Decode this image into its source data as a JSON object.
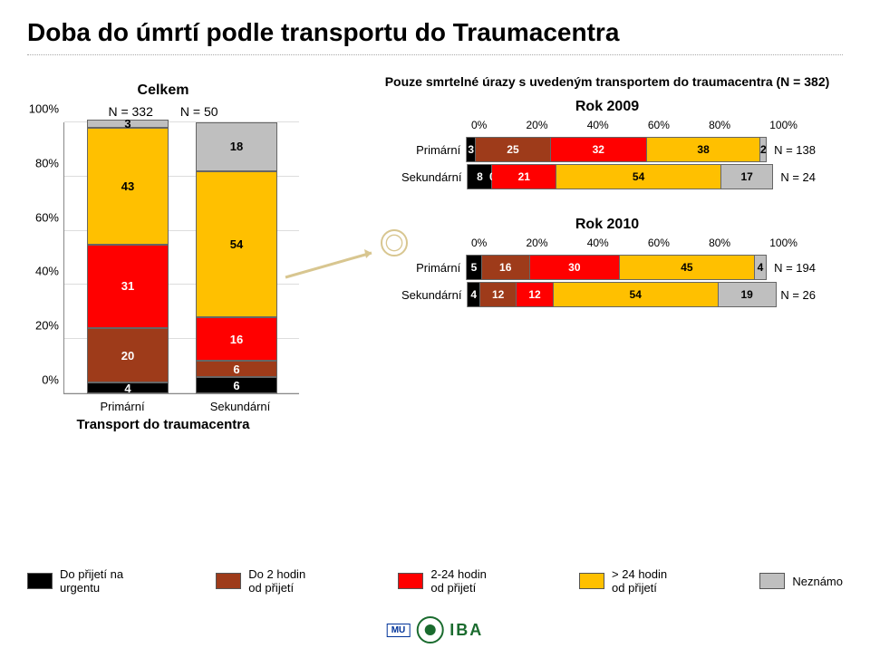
{
  "title": "Doba do úmrtí podle transportu do Traumacentra",
  "left": {
    "title": "Celkem",
    "n1_label": "N = 332",
    "n2_label": "N = 50",
    "ylabels": [
      "0%",
      "20%",
      "40%",
      "60%",
      "80%",
      "100%"
    ],
    "xlabels": [
      "Primární",
      "Sekundární"
    ],
    "caption": "Transport do traumacentra",
    "col1": [
      {
        "v": 4,
        "l": "4",
        "cls": "black"
      },
      {
        "v": 20,
        "l": "20",
        "cls": "darkred"
      },
      {
        "v": 31,
        "l": "31",
        "cls": "red"
      },
      {
        "v": 43,
        "l": "43",
        "cls": "yellow"
      },
      {
        "v": 3,
        "l": "3",
        "cls": "grey"
      }
    ],
    "col2": [
      {
        "v": 6,
        "l": "6",
        "cls": "black"
      },
      {
        "v": 6,
        "l": "6",
        "cls": "darkred"
      },
      {
        "v": 16,
        "l": "16",
        "cls": "red"
      },
      {
        "v": 54,
        "l": "54",
        "cls": "yellow"
      },
      {
        "v": 18,
        "l": "18",
        "cls": "grey"
      }
    ]
  },
  "right": {
    "subtitle": "Pouze smrtelné úrazy s uvedeným transportem do traumacentra (N = 382)",
    "xticks": [
      "0%",
      "20%",
      "40%",
      "60%",
      "80%",
      "100%"
    ],
    "year1": {
      "title": "Rok 2009",
      "rows": [
        {
          "label": "Primární",
          "n": "N = 138",
          "segs": [
            {
              "v": 3,
              "l": "3",
              "cls": "black"
            },
            {
              "v": 25,
              "l": "25",
              "cls": "darkred"
            },
            {
              "v": 32,
              "l": "32",
              "cls": "red"
            },
            {
              "v": 38,
              "l": "38",
              "cls": "yellow"
            },
            {
              "v": 2,
              "l": "2",
              "cls": "grey"
            }
          ]
        },
        {
          "label": "Sekundární",
          "n": "N = 24",
          "segs": [
            {
              "v": 8,
              "l": "8",
              "cls": "black"
            },
            {
              "v": 0,
              "l": "0",
              "cls": "darkred"
            },
            {
              "v": 21,
              "l": "21",
              "cls": "red"
            },
            {
              "v": 54,
              "l": "54",
              "cls": "yellow"
            },
            {
              "v": 17,
              "l": "17",
              "cls": "grey"
            }
          ]
        }
      ]
    },
    "year2": {
      "title": "Rok 2010",
      "rows": [
        {
          "label": "Primární",
          "n": "N = 194",
          "segs": [
            {
              "v": 5,
              "l": "5",
              "cls": "black"
            },
            {
              "v": 16,
              "l": "16",
              "cls": "darkred"
            },
            {
              "v": 30,
              "l": "30",
              "cls": "red"
            },
            {
              "v": 45,
              "l": "45",
              "cls": "yellow"
            },
            {
              "v": 4,
              "l": "4",
              "cls": "grey"
            }
          ]
        },
        {
          "label": "Sekundární",
          "n": "N = 26",
          "segs": [
            {
              "v": 4,
              "l": "4",
              "cls": "black"
            },
            {
              "v": 12,
              "l": "12",
              "cls": "darkred"
            },
            {
              "v": 12,
              "l": "12",
              "cls": "red"
            },
            {
              "v": 54,
              "l": "54",
              "cls": "yellow"
            },
            {
              "v": 19,
              "l": "19",
              "cls": "grey"
            }
          ]
        }
      ]
    }
  },
  "legend": [
    {
      "cls": "black",
      "t1": "Do přijetí na",
      "t2": "urgentu"
    },
    {
      "cls": "darkred",
      "t1": "Do 2 hodin",
      "t2": "od přijetí"
    },
    {
      "cls": "red",
      "t1": "2-24 hodin",
      "t2": "od přijetí"
    },
    {
      "cls": "yellow",
      "t1": "> 24 hodin",
      "t2": "od přijetí"
    },
    {
      "cls": "grey",
      "t1": "Neznámo",
      "t2": ""
    }
  ],
  "logo": {
    "mu": "MU",
    "iba": "IBA"
  }
}
